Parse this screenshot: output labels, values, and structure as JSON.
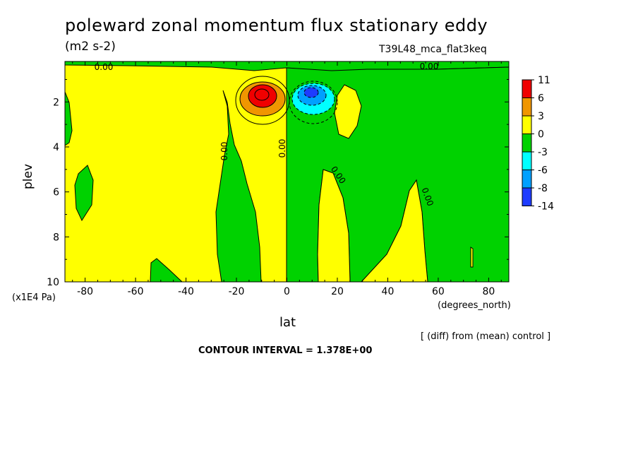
{
  "chart_data": {
    "type": "heatmap",
    "title": "poleward zonal momentum flux stationary eddy",
    "units": "(m2 s-2)",
    "run_label": "T39L48_mca_flat3keq",
    "xlabel": "lat",
    "xunit": "(degrees_north)",
    "ylabel": "plev",
    "yunit": "(x1E4 Pa)",
    "xlim": [
      -88,
      88
    ],
    "ylim": [
      0.2,
      10
    ],
    "xticks": [
      "-80",
      "-60",
      "-40",
      "-20",
      "0",
      "20",
      "40",
      "60",
      "80"
    ],
    "xtick_values": [
      -80,
      -60,
      -40,
      -20,
      0,
      20,
      40,
      60,
      80
    ],
    "yticks": [
      "2",
      "4",
      "6",
      "8",
      "10"
    ],
    "ytick_values": [
      2,
      4,
      6,
      8,
      10
    ],
    "contour_label": "0.00",
    "legend": {
      "levels": [
        "11",
        "6",
        "3",
        "0",
        "-3",
        "-6",
        "-8",
        "-14"
      ],
      "colors": [
        "#f00000",
        "#f09600",
        "#ffff00",
        "#00d200",
        "#00ffff",
        "#00a0ff",
        "#1e3cff"
      ]
    },
    "features": {
      "positive_max": {
        "lat": -10,
        "plev": 1.6,
        "value": 11
      },
      "negative_min": {
        "lat": 9,
        "plev": 1.6,
        "value": -14
      }
    },
    "diff_note": "[ (diff) from (mean) control ]",
    "contour_interval": "CONTOUR INTERVAL = 1.378E+00"
  }
}
